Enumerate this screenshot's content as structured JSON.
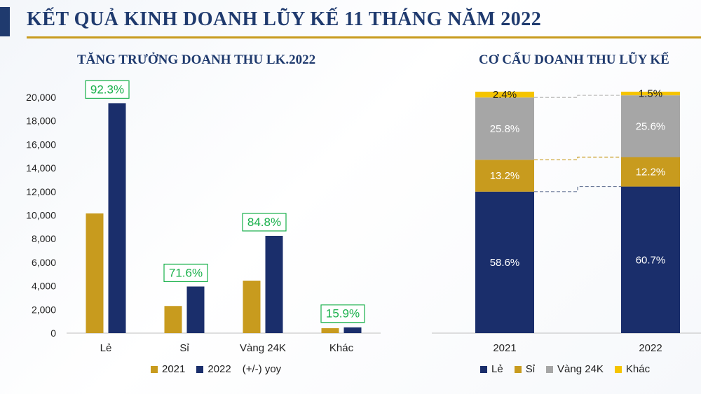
{
  "page": {
    "title": "KẾT QUẢ KINH DOANH LŨY KẾ 11 THÁNG NĂM 2022"
  },
  "colors": {
    "gold": "#c89b1e",
    "navy": "#1a2e6b",
    "gray": "#a6a6a6",
    "yellow": "#f5c400",
    "yoy_green": "#18b04a"
  },
  "chart_data": [
    {
      "type": "bar",
      "title": "TĂNG TRƯỞNG DOANH THU LK.2022",
      "categories": [
        "Lẻ",
        "Sỉ",
        "Vàng 24K",
        "Khác"
      ],
      "series": [
        {
          "name": "2021",
          "values": [
            10150,
            2300,
            4450,
            420
          ]
        },
        {
          "name": "2022",
          "values": [
            19500,
            3950,
            8250,
            490
          ]
        }
      ],
      "yoy_label": "(+/-) yoy",
      "yoy": [
        "92.3%",
        "71.6%",
        "84.8%",
        "15.9%"
      ],
      "ylim": [
        0,
        20000
      ],
      "yticks": [
        "0",
        "2,000",
        "4,000",
        "6,000",
        "8,000",
        "10,000",
        "12,000",
        "14,000",
        "16,000",
        "18,000",
        "20,000"
      ],
      "legend": "bottom"
    },
    {
      "type": "bar",
      "stacked": true,
      "title": "CƠ CẤU DOANH THU LŨY KẾ",
      "categories": [
        "2021",
        "2022"
      ],
      "series": [
        {
          "name": "Lẻ",
          "values": [
            58.6,
            60.7
          ],
          "labels": [
            "58.6%",
            "60.7%"
          ]
        },
        {
          "name": "Sỉ",
          "values": [
            13.2,
            12.2
          ],
          "labels": [
            "13.2%",
            "12.2%"
          ]
        },
        {
          "name": "Vàng 24K",
          "values": [
            25.8,
            25.6
          ],
          "labels": [
            "25.8%",
            "25.6%"
          ]
        },
        {
          "name": "Khác",
          "values": [
            2.4,
            1.5
          ],
          "labels": [
            "2.4%",
            "1.5%"
          ]
        }
      ],
      "ylim": [
        0,
        100
      ],
      "legend": "bottom"
    }
  ]
}
